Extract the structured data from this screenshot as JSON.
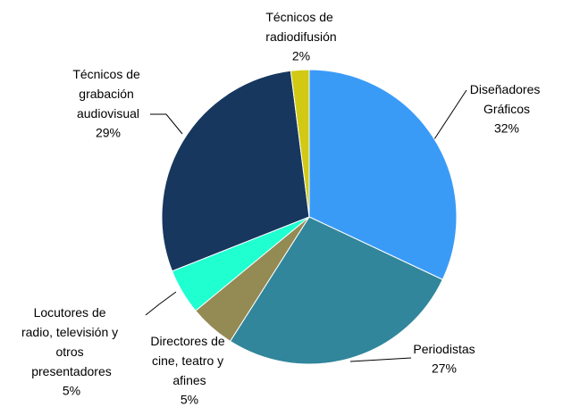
{
  "chart_data": {
    "type": "pie",
    "categories": [
      "Diseñadores Gráficos",
      "Periodistas",
      "Directores de cine, teatro y afines",
      "Locutores de radio, televisión y otros presentadores",
      "Técnicos de grabación audiovisual",
      "Técnicos de radiodifusión"
    ],
    "values": [
      32,
      27,
      5,
      5,
      29,
      2
    ],
    "value_labels": [
      "32%",
      "27%",
      "5%",
      "5%",
      "29%",
      "2%"
    ],
    "colors": [
      "#3a9bf7",
      "#31869b",
      "#948a54",
      "#1fffd0",
      "#17375e",
      "#d2c915"
    ]
  }
}
